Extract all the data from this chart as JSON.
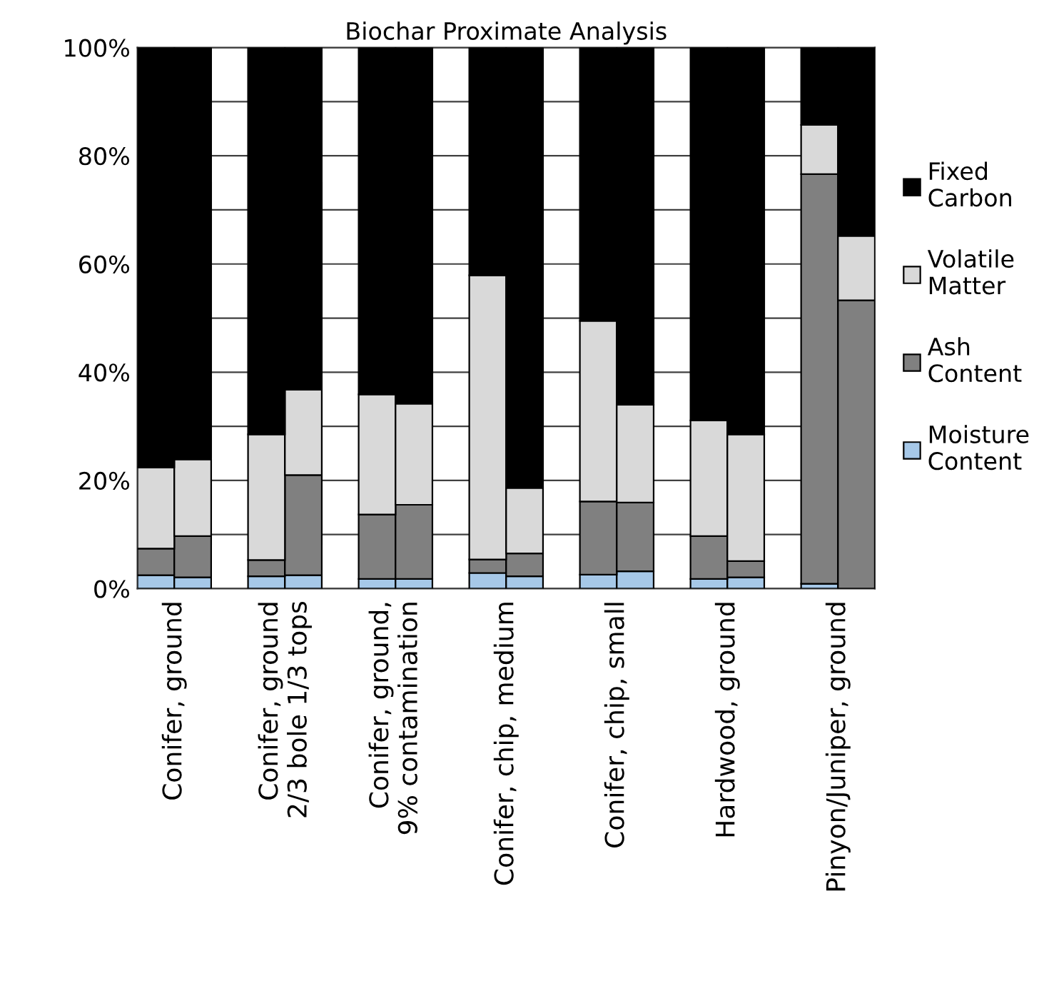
{
  "chart_data": {
    "type": "bar",
    "title": "Biochar Proximate Analysis",
    "stacked": true,
    "categories": [
      "Conifer, ground",
      null,
      null,
      "Conifer, ground\n2/3 bole 1/3 tops",
      null,
      null,
      "Conifer, ground,\n9% contamination",
      null,
      null,
      "Conifer, chip, medium",
      null,
      null,
      "Conifer, chip, small",
      null,
      null,
      "Hardwood, ground",
      null,
      null,
      "Pinyon/Juniper, ground",
      null
    ],
    "series": [
      {
        "name": "Moisture\nContent",
        "color": "#a6c8e8",
        "values": [
          2.5,
          2.1,
          null,
          2.3,
          2.5,
          null,
          1.8,
          1.8,
          null,
          2.9,
          2.3,
          null,
          2.6,
          3.2,
          null,
          1.8,
          2.1,
          null,
          0.9,
          0
        ]
      },
      {
        "name": "Ash\nContent",
        "color": "#808080",
        "values": [
          4.9,
          7.6,
          null,
          3.0,
          18.5,
          null,
          11.9,
          13.7,
          null,
          2.5,
          4.2,
          null,
          13.5,
          12.7,
          null,
          7.9,
          3.0,
          null,
          75.7,
          53.3
        ]
      },
      {
        "name": "Volatile\nMatter",
        "color": "#d9d9d9",
        "values": [
          15.0,
          14.2,
          null,
          23.2,
          15.8,
          null,
          22.2,
          18.7,
          null,
          52.5,
          12.1,
          null,
          33.4,
          18.1,
          null,
          21.4,
          23.4,
          null,
          9.1,
          11.9
        ]
      },
      {
        "name": "Fixed\nCarbon",
        "color": "#000000",
        "values": [
          77.6,
          76.1,
          null,
          71.5,
          63.2,
          null,
          64.1,
          65.8,
          null,
          42.1,
          81.4,
          null,
          50.5,
          66.0,
          null,
          68.9,
          71.5,
          null,
          14.3,
          34.8
        ]
      }
    ],
    "ylim": [
      0,
      100
    ],
    "yticks": [
      {
        "value": 0,
        "label": "0%"
      },
      {
        "value": 10,
        "label": null
      },
      {
        "value": 20,
        "label": "20%"
      },
      {
        "value": 30,
        "label": null
      },
      {
        "value": 40,
        "label": "40%"
      },
      {
        "value": 50,
        "label": null
      },
      {
        "value": 60,
        "label": "60%"
      },
      {
        "value": 70,
        "label": null
      },
      {
        "value": 80,
        "label": "80%"
      },
      {
        "value": 90,
        "label": null
      },
      {
        "value": 100,
        "label": "100%"
      }
    ],
    "grid": "y",
    "legend": "right"
  }
}
